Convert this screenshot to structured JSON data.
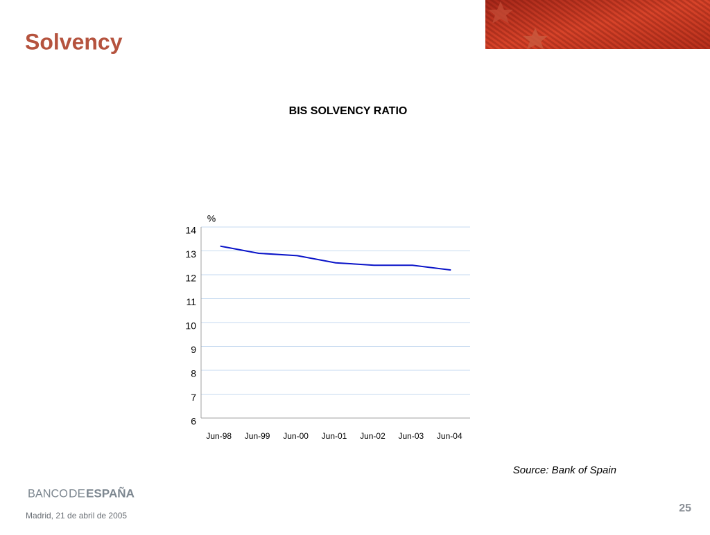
{
  "slide": {
    "title": "Solvency",
    "source": "Source: Bank of Spain",
    "logo": [
      "BANCO",
      "DE",
      "ESPAÑA"
    ],
    "footer": "Madrid,  21 de abril de 2005",
    "page_number": "25"
  },
  "chart_data": {
    "type": "line",
    "title": "BIS SOLVENCY RATIO",
    "y_label": "%",
    "categories": [
      "Jun-98",
      "Jun-99",
      "Jun-00",
      "Jun-01",
      "Jun-02",
      "Jun-03",
      "Jun-04"
    ],
    "values": [
      13.2,
      12.9,
      12.8,
      12.5,
      12.4,
      12.4,
      12.2
    ],
    "color": "#0a14c8",
    "ylim": [
      6,
      14
    ],
    "yticks": [
      6,
      7,
      8,
      9,
      10,
      11,
      12,
      13,
      14
    ],
    "grid": true
  }
}
